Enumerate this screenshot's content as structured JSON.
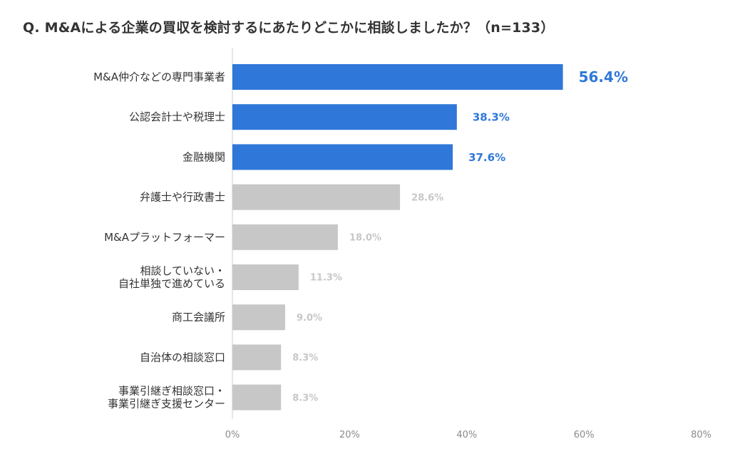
{
  "title": "Q. M&Aによる企業の買収を検討するにあたりどこかに相談しましたか？（n=133）",
  "chart_data": {
    "type": "bar",
    "orientation": "horizontal",
    "title": "Q. M&Aによる企業の買収を検討するにあたりどこかに相談しましたか？（n=133）",
    "categories": [
      "M&A仲介などの専門事業者",
      "公認会計士や税理士",
      "金融機関",
      "弁護士や行政書士",
      "M&Aプラットフォーマー",
      "相談していない・\n自社単独で進めている",
      "商工会議所",
      "自治体の相談窓口",
      "事業引継ぎ相談窓口・\n事業引継ぎ支援センター"
    ],
    "values": [
      56.4,
      38.3,
      37.6,
      28.6,
      18.0,
      11.3,
      9.0,
      8.3,
      8.3
    ],
    "value_labels": [
      "56.4%",
      "38.3%",
      "37.6%",
      "28.6%",
      "18.0%",
      "11.3%",
      "9.0%",
      "8.3%",
      "8.3%"
    ],
    "highlighted": [
      true,
      true,
      true,
      false,
      false,
      false,
      false,
      false,
      false
    ],
    "xlim": [
      0,
      80
    ],
    "x_ticks": [
      "0%",
      "20%",
      "40%",
      "60%",
      "80%"
    ],
    "grid": false,
    "legend": "none",
    "colors": {
      "highlight_bar": "#2f78d9",
      "other_bar": "#c7c7c7",
      "highlight_label": "#2f78d9",
      "other_label": "#c7c7c7",
      "axis": "#cccccc"
    }
  }
}
